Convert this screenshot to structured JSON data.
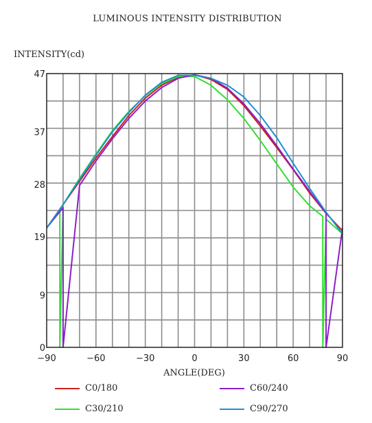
{
  "chart_data": {
    "type": "line",
    "title": "LUMINOUS INTENSITY DISTRIBUTION",
    "xlabel": "ANGLE(DEG)",
    "ylabel": "INTENSITY(cd)",
    "xlim": [
      -90,
      90
    ],
    "ylim": [
      0,
      47
    ],
    "xticks": [
      -90,
      -60,
      -30,
      0,
      30,
      60,
      90
    ],
    "xtick_labels": [
      "−90",
      "−60",
      "−30",
      "0",
      "30",
      "60",
      "90"
    ],
    "yticks": [
      0,
      9,
      19,
      28,
      37,
      47
    ],
    "ytick_labels": [
      "0",
      "9",
      "19",
      "28",
      "37",
      "47"
    ],
    "grid": true,
    "legend_position": "bottom",
    "series": [
      {
        "name": "C0/180",
        "color": "#cc1f1f",
        "x": [
          -90,
          -80,
          -70,
          -60,
          -50,
          -40,
          -30,
          -20,
          -10,
          0,
          10,
          20,
          30,
          40,
          50,
          60,
          70,
          80,
          90
        ],
        "y": [
          20.5,
          24.5,
          28.5,
          32.5,
          36.2,
          39.8,
          42.8,
          45.0,
          46.4,
          46.8,
          46.0,
          44.3,
          41.5,
          38.0,
          34.3,
          30.5,
          26.5,
          23.0,
          20.0
        ]
      },
      {
        "name": "C30/210",
        "color": "#2ee02e",
        "x": [
          -90,
          -82,
          -82,
          -80,
          -70,
          -60,
          -50,
          -40,
          -30,
          -20,
          -10,
          0,
          10,
          20,
          30,
          40,
          50,
          60,
          70,
          78,
          78,
          80,
          90
        ],
        "y": [
          20.5,
          23.5,
          0,
          24.5,
          29.0,
          33.2,
          37.2,
          40.5,
          43.2,
          45.3,
          46.5,
          46.5,
          45.0,
          42.5,
          39.3,
          35.5,
          31.5,
          27.5,
          24.3,
          22.5,
          0,
          22.0,
          19.5
        ]
      },
      {
        "name": "C60/240",
        "color": "#8a1fc8",
        "x": [
          -90,
          -80,
          -80,
          -70,
          -60,
          -50,
          -40,
          -30,
          -20,
          -10,
          0,
          10,
          20,
          30,
          40,
          50,
          60,
          70,
          80,
          80,
          90
        ],
        "y": [
          20.5,
          24.0,
          0,
          27.8,
          32.0,
          35.8,
          39.3,
          42.3,
          44.6,
          46.2,
          46.8,
          46.2,
          44.5,
          41.8,
          38.4,
          34.6,
          30.6,
          26.8,
          23.0,
          0,
          20.5
        ]
      },
      {
        "name": "C90/270",
        "color": "#1e8fd2",
        "x": [
          -90,
          -80,
          -70,
          -60,
          -50,
          -40,
          -30,
          -20,
          -10,
          0,
          10,
          20,
          30,
          40,
          50,
          60,
          70,
          80,
          90
        ],
        "y": [
          20.5,
          24.5,
          28.8,
          33.0,
          37.0,
          40.3,
          43.3,
          45.5,
          46.7,
          46.7,
          46.2,
          45.0,
          43.0,
          39.8,
          36.0,
          31.6,
          27.3,
          23.2,
          19.5
        ]
      }
    ]
  }
}
